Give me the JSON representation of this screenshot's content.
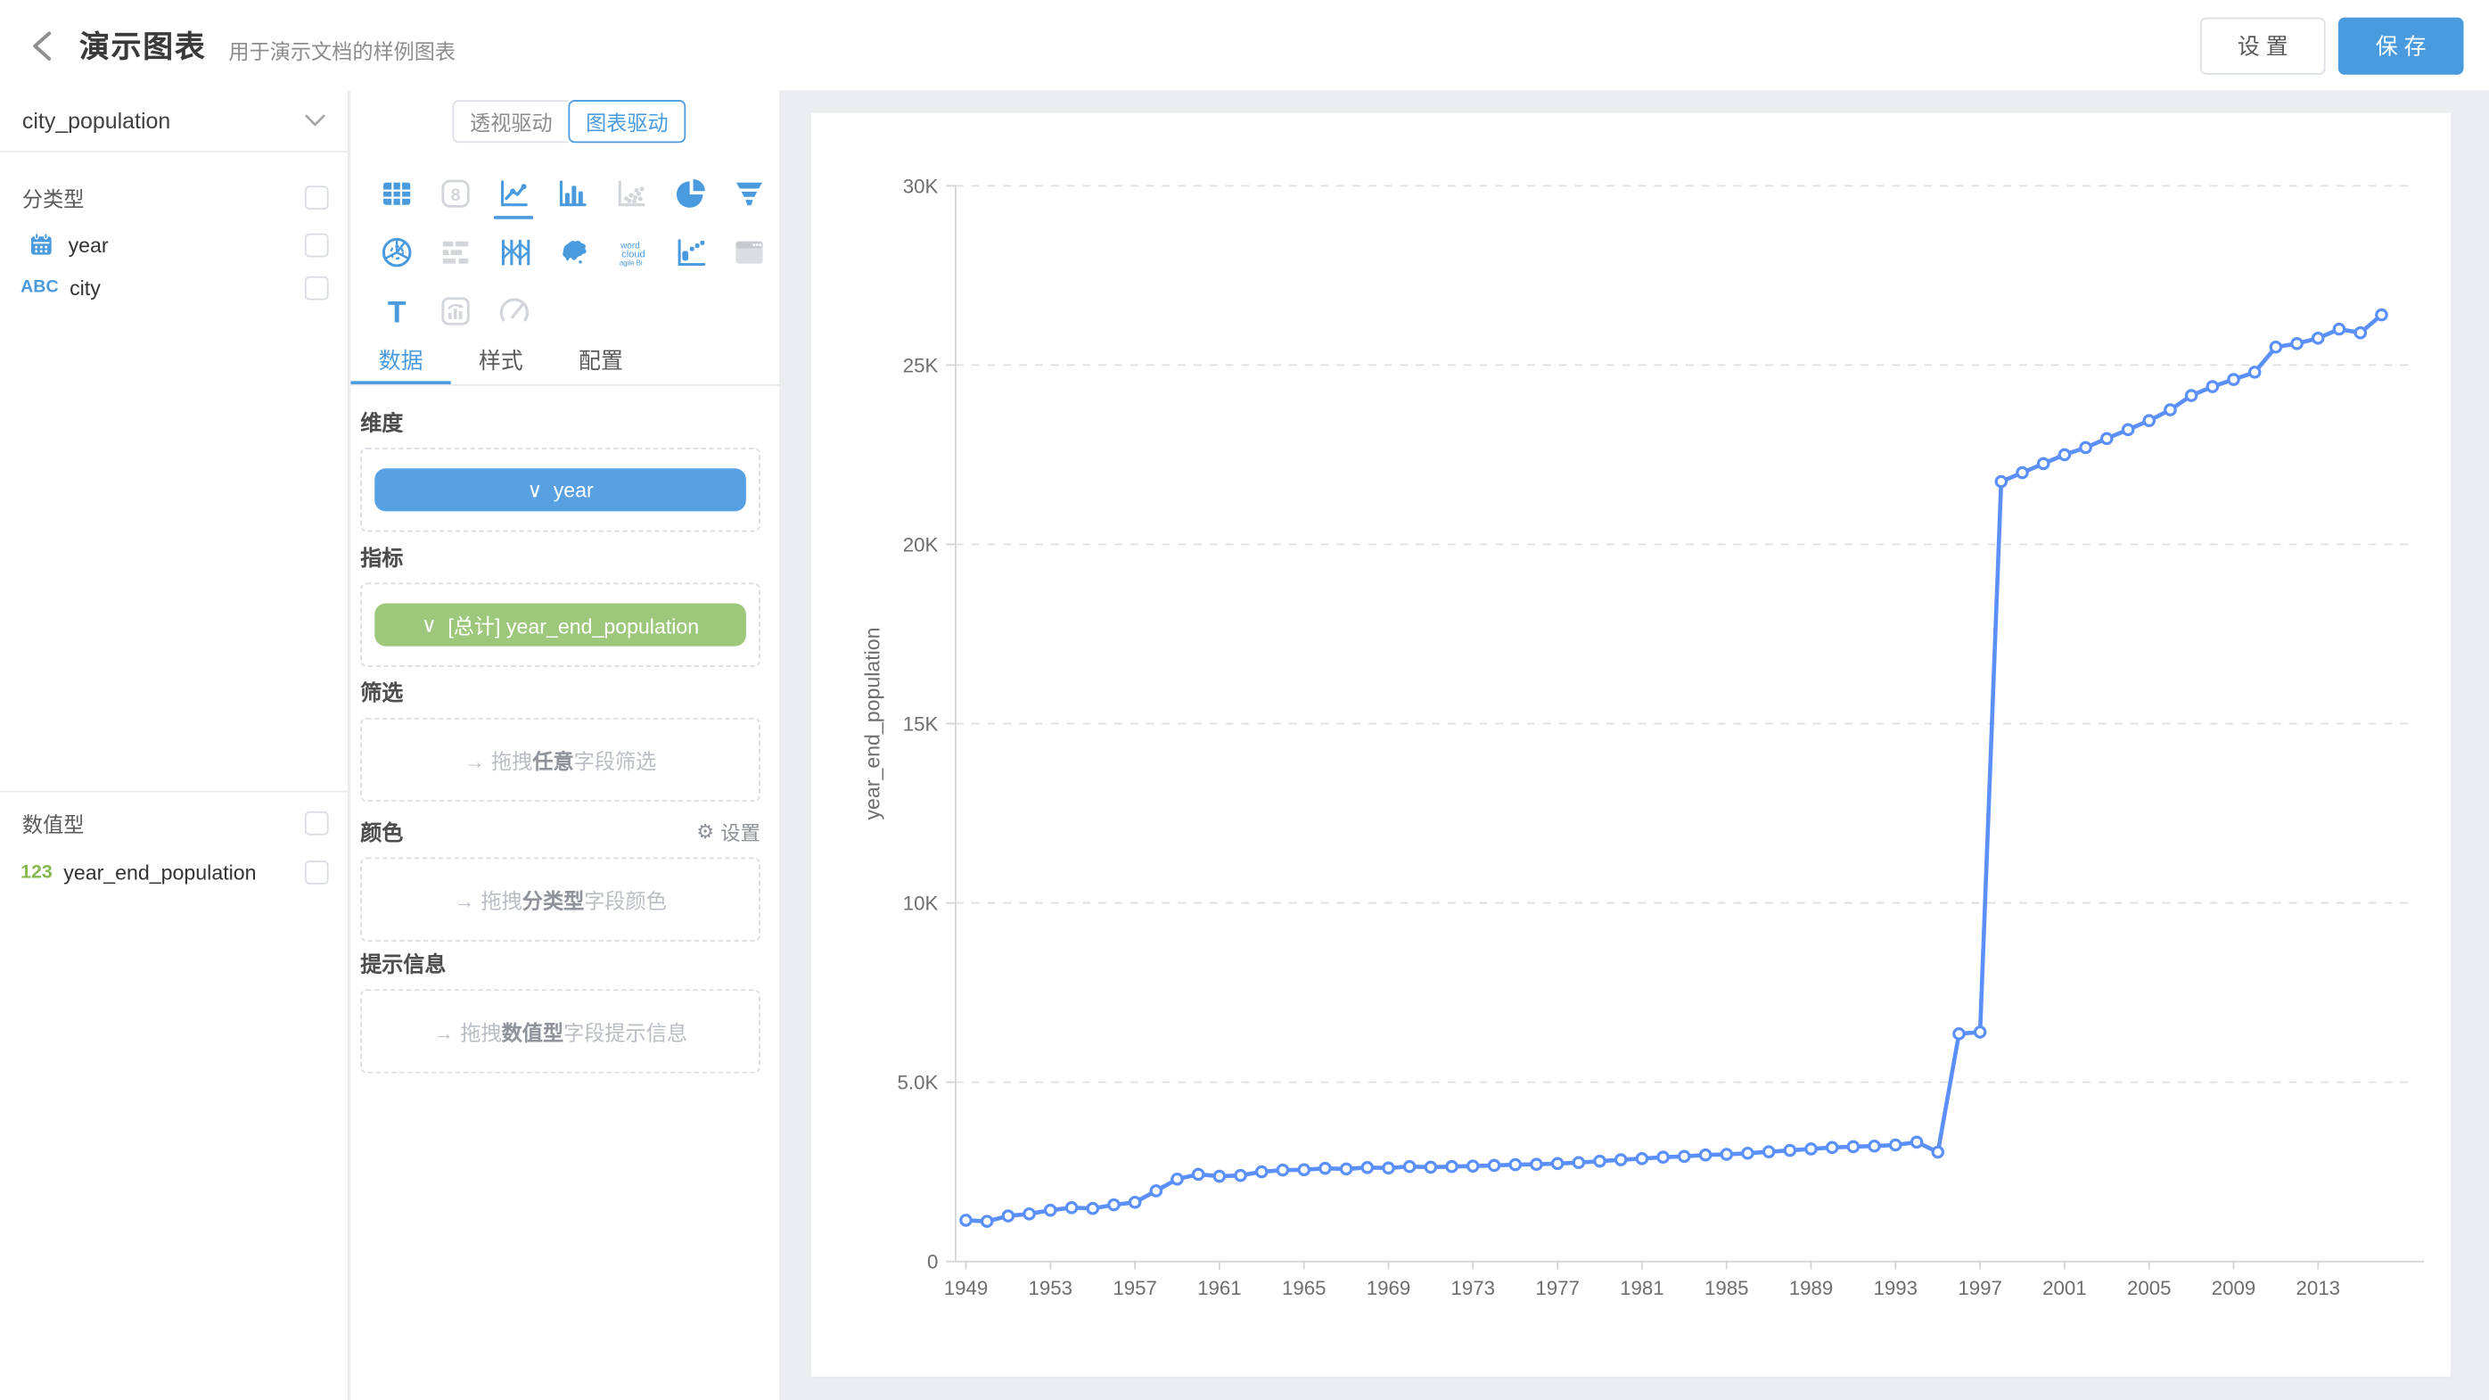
{
  "header": {
    "title": "演示图表",
    "subtitle": "用于演示文档的样例图表",
    "settings_label": "设 置",
    "save_label": "保 存"
  },
  "dataset_panel": {
    "dataset_name": "city_population",
    "categorical_section_label": "分类型",
    "numeric_section_label": "数值型",
    "categorical_fields": [
      {
        "icon": "calendar-icon",
        "name": "year",
        "checked": false
      },
      {
        "icon": "abc-icon",
        "icon_text": "ABC",
        "name": "city",
        "checked": false
      }
    ],
    "numeric_fields": [
      {
        "icon": "number-123-icon",
        "icon_text": "123",
        "name": "year_end_population",
        "checked": false
      }
    ]
  },
  "builder_panel": {
    "mode_switch": {
      "pivot_label": "透视驱动",
      "chart_label": "图表驱动",
      "active": "图表驱动"
    },
    "chart_types": [
      {
        "name": "table",
        "enabled": true,
        "selected": false
      },
      {
        "name": "number-card",
        "enabled": false,
        "selected": false
      },
      {
        "name": "line",
        "enabled": true,
        "selected": true
      },
      {
        "name": "bar",
        "enabled": true,
        "selected": false
      },
      {
        "name": "scatter",
        "enabled": false,
        "selected": false
      },
      {
        "name": "pie",
        "enabled": true,
        "selected": false
      },
      {
        "name": "funnel",
        "enabled": true,
        "selected": false
      },
      {
        "name": "radar",
        "enabled": true,
        "selected": false
      },
      {
        "name": "gantt",
        "enabled": false,
        "selected": false
      },
      {
        "name": "parallel",
        "enabled": true,
        "selected": false
      },
      {
        "name": "china-map",
        "enabled": true,
        "selected": false
      },
      {
        "name": "word-cloud",
        "enabled": true,
        "selected": false
      },
      {
        "name": "punch-card",
        "enabled": true,
        "selected": false
      },
      {
        "name": "web-page",
        "enabled": false,
        "selected": false
      },
      {
        "name": "text",
        "enabled": true,
        "selected": false
      },
      {
        "name": "quadrant",
        "enabled": false,
        "selected": false
      },
      {
        "name": "gauge",
        "enabled": false,
        "selected": false
      }
    ],
    "icon_glyphs": {
      "number_card": "8",
      "text_t": "T",
      "word_cloud": [
        "word",
        "cloud",
        "agile Bi"
      ]
    },
    "tabs": [
      {
        "label": "数据",
        "active": true
      },
      {
        "label": "样式",
        "active": false
      },
      {
        "label": "配置",
        "active": false
      }
    ],
    "drop_icon": "→",
    "chevron": "∨",
    "gear_icon": "⚙",
    "sections": {
      "dimension": {
        "label": "维度",
        "pill_text": "year",
        "pill_color": "#57a1e2"
      },
      "measure": {
        "label": "指标",
        "pill_text": "[总计] year_end_population",
        "pill_color": "#9dc87c"
      },
      "filter": {
        "label": "筛选",
        "ph_prefix": "拖拽",
        "ph_bold": "任意",
        "ph_suffix": "字段筛选"
      },
      "color": {
        "label": "颜色",
        "settings_label": "设置",
        "ph_prefix": "拖拽",
        "ph_bold": "分类型",
        "ph_suffix": "字段颜色"
      },
      "tooltip": {
        "label": "提示信息",
        "ph_prefix": "拖拽",
        "ph_bold": "数值型",
        "ph_suffix": "字段提示信息"
      }
    }
  },
  "colors": {
    "accent_blue": "#4a9ade",
    "line_blue": "#5b8ff9",
    "pill_blue": "#57a1e2",
    "pill_green": "#9dc87c",
    "field_green": "#85b94e",
    "page_bg": "#ecedf1"
  },
  "chart_data": {
    "type": "line",
    "title": "",
    "xlabel": "",
    "ylabel": "year_end_population",
    "x": [
      1949,
      1950,
      1951,
      1952,
      1953,
      1954,
      1955,
      1956,
      1957,
      1958,
      1959,
      1960,
      1961,
      1962,
      1963,
      1964,
      1965,
      1966,
      1967,
      1968,
      1969,
      1970,
      1971,
      1972,
      1973,
      1974,
      1975,
      1976,
      1977,
      1978,
      1979,
      1980,
      1981,
      1982,
      1983,
      1984,
      1985,
      1986,
      1987,
      1988,
      1989,
      1990,
      1991,
      1992,
      1993,
      1994,
      1995,
      1996,
      1997,
      1998,
      1999,
      2000,
      2001,
      2002,
      2003,
      2004,
      2005,
      2006,
      2007,
      2008,
      2009,
      2010,
      2011,
      2012,
      2013,
      2014,
      2015,
      2016
    ],
    "values": [
      1150,
      1120,
      1270,
      1330,
      1430,
      1500,
      1480,
      1580,
      1650,
      1970,
      2300,
      2430,
      2380,
      2400,
      2500,
      2550,
      2560,
      2600,
      2580,
      2620,
      2610,
      2650,
      2630,
      2650,
      2660,
      2680,
      2700,
      2710,
      2730,
      2760,
      2800,
      2840,
      2870,
      2910,
      2930,
      2970,
      2990,
      3020,
      3060,
      3100,
      3140,
      3180,
      3200,
      3220,
      3250,
      3330,
      3050,
      6350,
      6400,
      21750,
      22000,
      22250,
      22500,
      22700,
      22950,
      23200,
      23450,
      23750,
      24150,
      24400,
      24600,
      24800,
      25500,
      25600,
      25750,
      26000,
      25900,
      26400
    ],
    "x_tick_years": [
      1949,
      1953,
      1957,
      1961,
      1965,
      1969,
      1973,
      1977,
      1981,
      1985,
      1989,
      1993,
      1997,
      2001,
      2005,
      2009,
      2013
    ],
    "y_ticks": [
      "0",
      "5.0K",
      "10K",
      "15K",
      "20K",
      "25K",
      "30K"
    ],
    "y_tick_step": 5000,
    "ylim": [
      0,
      30000
    ],
    "grid": "horizontal-dashed",
    "legend": "none",
    "line_color": "#5b8ff9",
    "marker": "hollow-circle"
  }
}
